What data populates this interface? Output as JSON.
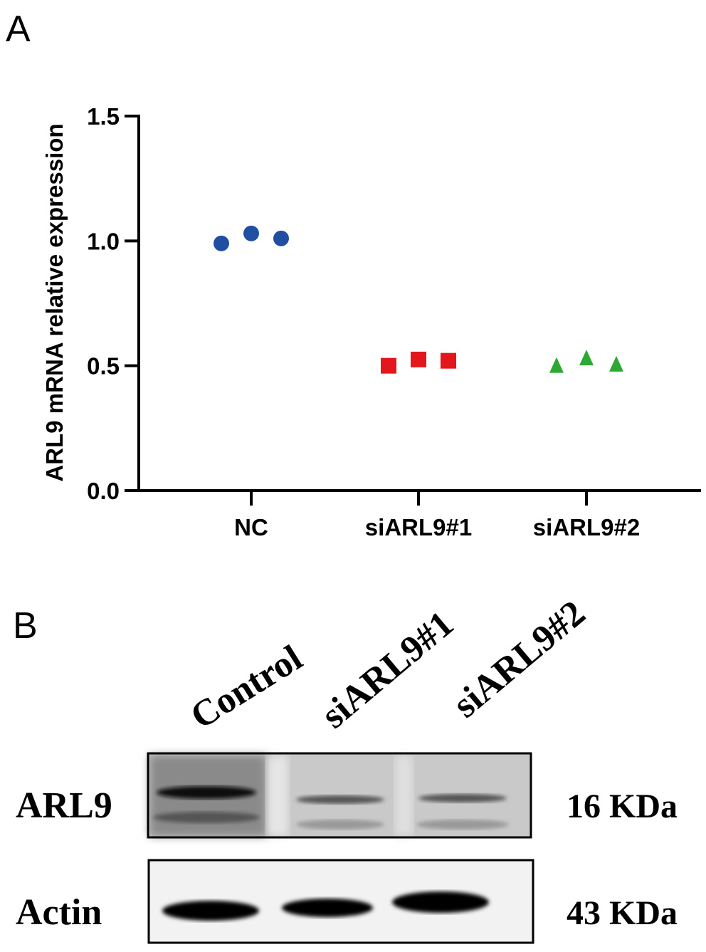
{
  "panels": {
    "a": "A",
    "b": "B"
  },
  "chart_data": {
    "type": "scatter",
    "title": "",
    "xlabel": "",
    "ylabel": "ARL9 mRNA relative expression",
    "ylim": [
      0,
      1.5
    ],
    "yticks": [
      "0.0",
      "0.5",
      "1.0",
      "1.5"
    ],
    "ytick_values": [
      0,
      0.5,
      1.0,
      1.5
    ],
    "grid": false,
    "categories": [
      "NC",
      "siARL9#1",
      "siARL9#2"
    ],
    "series": [
      {
        "name": "NC",
        "marker": "circle",
        "color": "#1f4ea3",
        "values": [
          0.99,
          1.03,
          1.01
        ]
      },
      {
        "name": "siARL9#1",
        "marker": "square",
        "color": "#e3171b",
        "values": [
          0.5,
          0.525,
          0.52
        ]
      },
      {
        "name": "siARL9#2",
        "marker": "triangle",
        "color": "#2ca834",
        "values": [
          0.5,
          0.53,
          0.505
        ]
      }
    ]
  },
  "blot": {
    "lanes": [
      "Control",
      "siARL9#1",
      "siARL9#2"
    ],
    "rows": [
      {
        "label": "ARL9",
        "size": "16 KDa",
        "relative_intensity": [
          1.0,
          0.45,
          0.45
        ]
      },
      {
        "label": "Actin",
        "size": "43 KDa",
        "relative_intensity": [
          1.0,
          1.0,
          1.0
        ]
      }
    ]
  }
}
